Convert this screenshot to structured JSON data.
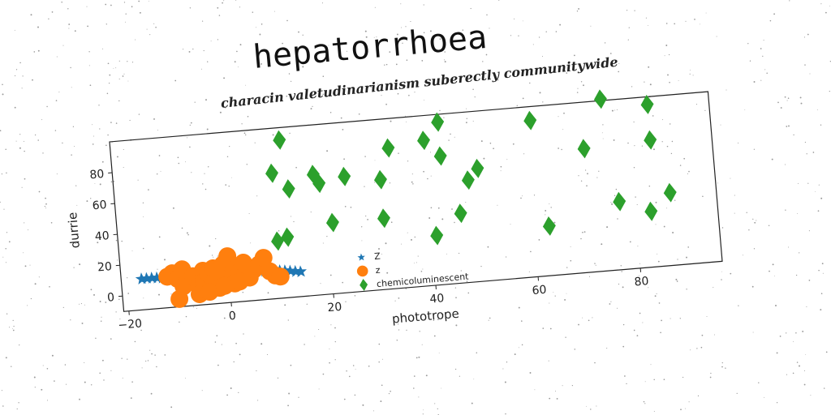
{
  "chart_data": {
    "type": "scatter",
    "title": "hepatorrhoea",
    "subtitle": "characin valetudinarianism suberectly communitywide",
    "xlabel": "phototrope",
    "ylabel": "durrie",
    "xlim": [
      -21,
      96
    ],
    "ylim": [
      -10,
      100
    ],
    "xticks": [
      -20,
      0,
      20,
      40,
      60,
      80
    ],
    "yticks": [
      0,
      20,
      40,
      60,
      80
    ],
    "grid": false,
    "legend_position": "lower-center",
    "series": [
      {
        "name": "Z",
        "marker": "star",
        "color": "#1f77b4",
        "x": [
          -17,
          -16,
          -15,
          -14,
          -13,
          -12,
          -11,
          -10,
          -9,
          -8,
          -7,
          -6,
          -5,
          -4,
          -3,
          -2,
          -1,
          0,
          1,
          2,
          3,
          4,
          5,
          6,
          7,
          8,
          9,
          10,
          11,
          12,
          13,
          14
        ],
        "y": [
          10,
          10,
          10,
          9.8,
          9.6,
          9.4,
          9.2,
          9,
          8.8,
          8.6,
          8.4,
          8.2,
          8,
          7.8,
          7.6,
          7.4,
          7.2,
          7,
          7.6,
          8,
          8.3,
          8.5,
          8.6,
          8.6,
          8.4,
          8.2,
          8,
          7.8,
          7.5,
          7,
          6.5,
          6
        ]
      },
      {
        "name": "z",
        "marker": "circle",
        "color": "#ff7f0e",
        "x": [
          -12,
          -11,
          -10,
          -9,
          -9,
          -8,
          -7,
          -6,
          -5,
          -5,
          -4,
          -3,
          -3,
          -2,
          -2,
          -1,
          0,
          0,
          1,
          1,
          2,
          3,
          4,
          5,
          6,
          7,
          8,
          9,
          10,
          -10,
          -6,
          -4,
          -1,
          2
        ],
        "y": [
          10,
          12,
          8,
          14,
          3,
          6,
          9,
          2,
          12,
          5,
          10,
          4,
          13,
          8,
          0,
          15,
          20,
          6,
          11,
          2,
          9,
          15,
          5,
          10,
          13,
          17,
          8,
          5,
          4,
          -5,
          -3,
          -2,
          1,
          3
        ]
      },
      {
        "name": "chemicoluminescent",
        "marker": "diamond",
        "color": "#2ca02c",
        "x": [
          12,
          10,
          13,
          18,
          19,
          24,
          21,
          33,
          31,
          31,
          10,
          12,
          40,
          43,
          43,
          41,
          46,
          48,
          50,
          61,
          63,
          71,
          75,
          77,
          84,
          84,
          87,
          83
        ],
        "y": [
          92,
          71,
          60,
          68,
          62,
          65,
          36,
          81,
          61,
          36,
          27,
          29,
          84,
          95,
          73,
          22,
          35,
          56,
          63,
          91,
          22,
          70,
          101,
          34,
          95,
          72,
          37,
          26
        ]
      }
    ]
  }
}
